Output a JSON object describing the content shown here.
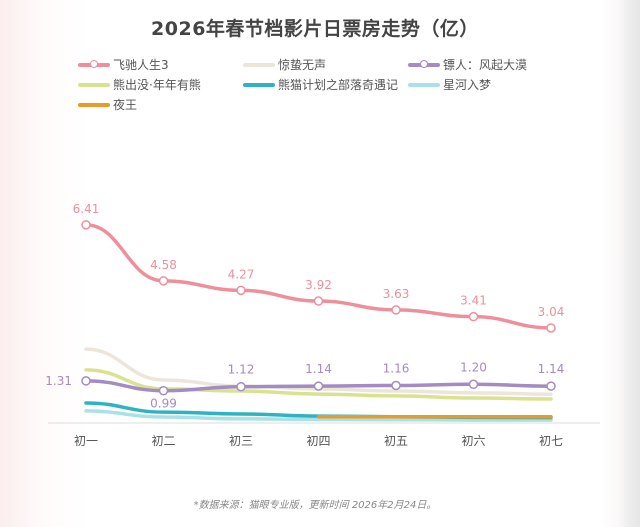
{
  "title": "2026年春节档影片日票房走势（亿）",
  "footer": "*数据来源：猫眼专业版，更新时间 2026年2月24日。",
  "chart_data": {
    "type": "line",
    "title": "2026年春节档影片日票房走势（亿）",
    "categories": [
      "初一",
      "初二",
      "初三",
      "初四",
      "初五",
      "初六",
      "初七"
    ],
    "ylim": [
      0,
      7
    ],
    "grid": false,
    "legend": "top",
    "series": [
      {
        "name": "飞驰人生3",
        "color": "#ee8f9c",
        "markers": true,
        "labels": true,
        "values": [
          6.41,
          4.58,
          4.27,
          3.92,
          3.63,
          3.41,
          3.04
        ]
      },
      {
        "name": "惊蛰无声",
        "color": "#ece6da",
        "markers": false,
        "labels": false,
        "values": [
          2.35,
          1.34,
          1.14,
          1.05,
          0.98,
          0.92,
          0.88
        ]
      },
      {
        "name": "镖人：风起大漠",
        "color": "#a58bc4",
        "markers": true,
        "labels": true,
        "values": [
          1.31,
          0.99,
          1.12,
          1.14,
          1.16,
          1.2,
          1.14
        ]
      },
      {
        "name": "熊出没·年年有熊",
        "color": "#d9e38f",
        "markers": false,
        "labels": false,
        "values": [
          1.67,
          1.05,
          0.98,
          0.88,
          0.82,
          0.75,
          0.72
        ]
      },
      {
        "name": "熊猫计划之部落奇遇记",
        "color": "#2fb3c2",
        "markers": false,
        "labels": false,
        "values": [
          0.59,
          0.29,
          0.23,
          0.16,
          0.14,
          0.12,
          0.11
        ]
      },
      {
        "name": "星河入梦",
        "color": "#a9e2e6",
        "markers": false,
        "labels": false,
        "values": [
          0.33,
          0.13,
          0.07,
          0.05,
          0.04,
          0.03,
          0.03
        ]
      },
      {
        "name": "夜王",
        "color": "#e89a2a",
        "markers": false,
        "labels": false,
        "values": [
          null,
          null,
          null,
          0.14,
          0.14,
          0.14,
          0.14
        ]
      }
    ]
  }
}
